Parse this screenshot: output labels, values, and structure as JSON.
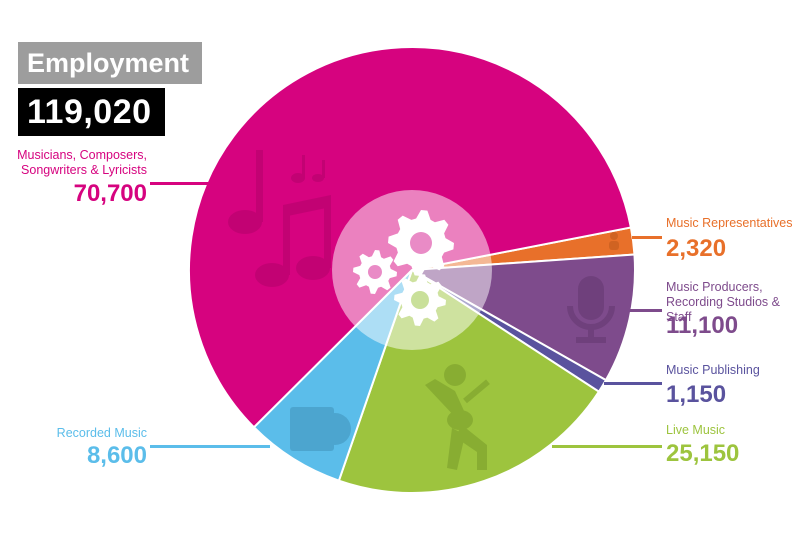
{
  "header": {
    "title": "Employment",
    "total": "119,020"
  },
  "segments": [
    {
      "label_line1": "Musicians, Composers,",
      "label_line2": "Songwriters & Lyricists",
      "value": "70,700",
      "color": "#D6037F",
      "icon": "music-notes-icon"
    },
    {
      "label_line1": "Music Representatives",
      "label_line2": "",
      "value": "2,320",
      "color": "#E8702A",
      "icon": "person-icon"
    },
    {
      "label_line1": "Music Producers,",
      "label_line2": "Recording Studios & Staff",
      "value": "11,100",
      "color": "#7E4B8C",
      "icon": "microphone-icon"
    },
    {
      "label_line1": "Music Publishing",
      "label_line2": "",
      "value": "1,150",
      "color": "#5A539E",
      "icon": "none"
    },
    {
      "label_line1": "Live Music",
      "label_line2": "",
      "value": "25,150",
      "color": "#9DC43E",
      "icon": "guitarist-icon"
    },
    {
      "label_line1": "Recorded Music",
      "label_line2": "",
      "value": "8,600",
      "color": "#5BBDEA",
      "icon": "album-icon"
    }
  ],
  "center_icon": "gears-icon",
  "chart_data": {
    "type": "pie",
    "title": "Employment",
    "total": 119020,
    "categories": [
      "Musicians, Composers, Songwriters & Lyricists",
      "Music Representatives",
      "Music Producers, Recording Studios & Staff",
      "Music Publishing",
      "Live Music",
      "Recorded Music"
    ],
    "values": [
      70700,
      2320,
      11100,
      1150,
      25150,
      8600
    ],
    "colors": [
      "#D6037F",
      "#E8702A",
      "#7E4B8C",
      "#5A539E",
      "#9DC43E",
      "#5BBDEA"
    ],
    "start_angle_deg": -11,
    "legend_position": "labels beside slices with leader lines"
  }
}
